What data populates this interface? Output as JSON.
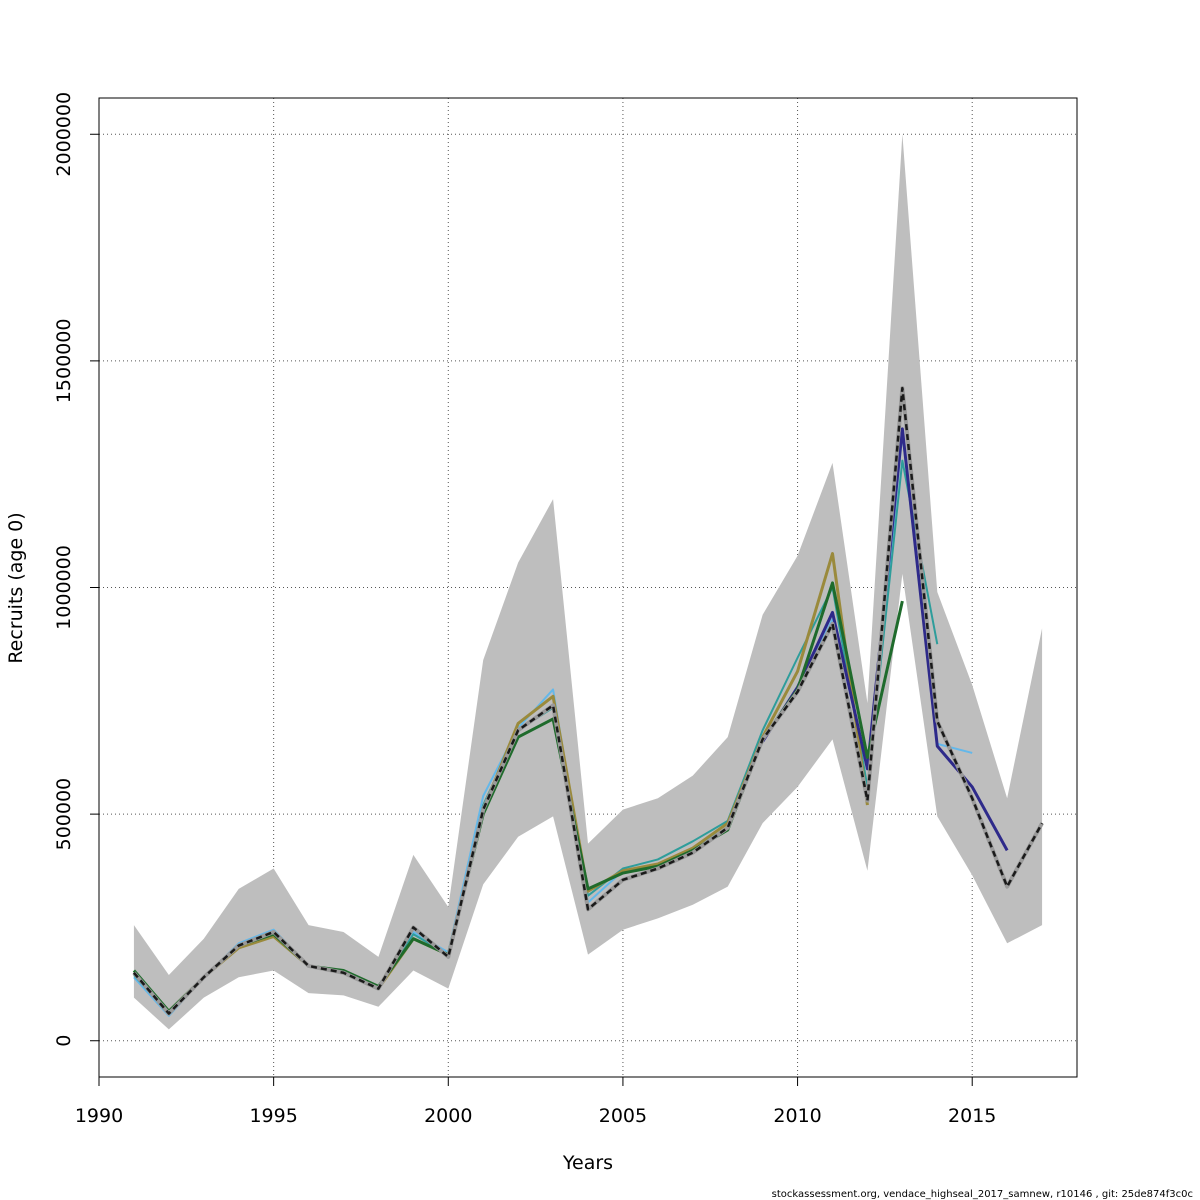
{
  "chart_data": {
    "type": "line",
    "title": "",
    "xlabel": "Years",
    "ylabel": "Recruits (age 0)",
    "xlim": [
      1990,
      2018
    ],
    "ylim": [
      -80000,
      2080000
    ],
    "x_ticks": [
      1990,
      1995,
      2000,
      2005,
      2010,
      2015
    ],
    "y_ticks": [
      0,
      500000,
      1000000,
      1500000,
      2000000
    ],
    "grid": true,
    "legend": "none",
    "footer": "stockassessment.org, vendace_highseal_2017_samnew, r10146 , git: 25de874f3c0c",
    "band": {
      "color": "#bebebe",
      "x": [
        1991,
        1992,
        1993,
        1994,
        1995,
        1996,
        1997,
        1998,
        1999,
        2000,
        2001,
        2002,
        2003,
        2004,
        2005,
        2006,
        2007,
        2008,
        2009,
        2010,
        2011,
        2012,
        2013,
        2014,
        2015,
        2016,
        2017
      ],
      "lower": [
        95000,
        25000,
        95000,
        140000,
        155000,
        105000,
        100000,
        75000,
        155000,
        115000,
        345000,
        450000,
        495000,
        190000,
        245000,
        270000,
        300000,
        340000,
        480000,
        560000,
        665000,
        375000,
        1030000,
        495000,
        365000,
        215000,
        255000
      ],
      "upper": [
        255000,
        145000,
        225000,
        335000,
        380000,
        255000,
        240000,
        185000,
        410000,
        295000,
        840000,
        1055000,
        1195000,
        435000,
        510000,
        535000,
        585000,
        670000,
        940000,
        1070000,
        1275000,
        745000,
        2000000,
        990000,
        785000,
        535000,
        910000
      ]
    },
    "series": [
      {
        "color": "#64b8ea",
        "width": 2,
        "x": [
          1991,
          1992,
          1993,
          1994,
          1995,
          1996,
          1997,
          1998,
          1999,
          2000,
          2001,
          2002,
          2003,
          2004,
          2005,
          2006,
          2007,
          2008,
          2009,
          2010,
          2011,
          2012,
          2013,
          2014,
          2015
        ],
        "values": [
          140000,
          55000,
          140000,
          215000,
          245000,
          165000,
          155000,
          120000,
          240000,
          195000,
          540000,
          690000,
          775000,
          305000,
          375000,
          390000,
          425000,
          470000,
          660000,
          775000,
          930000,
          540000,
          1340000,
          655000,
          635000
        ]
      },
      {
        "color": "#2e9d9b",
        "width": 2,
        "x": [
          1991,
          1992,
          1993,
          1994,
          1995,
          1996,
          1997,
          1998,
          1999,
          2000,
          2001,
          2002,
          2003,
          2004,
          2005,
          2006,
          2007,
          2008,
          2009,
          2010,
          2011,
          2012,
          2013,
          2014
        ],
        "values": [
          145000,
          60000,
          140000,
          210000,
          235000,
          165000,
          150000,
          115000,
          235000,
          190000,
          520000,
          685000,
          735000,
          320000,
          380000,
          400000,
          440000,
          485000,
          685000,
          845000,
          1000000,
          560000,
          1280000,
          875000
        ]
      },
      {
        "color": "#9a8a3c",
        "width": 3,
        "x": [
          1991,
          1992,
          1993,
          1994,
          1995,
          1996,
          1997,
          1998,
          1999,
          2000,
          2001,
          2002,
          2003,
          2004,
          2005,
          2006,
          2007,
          2008,
          2009,
          2010,
          2011,
          2012
        ],
        "values": [
          150000,
          65000,
          140000,
          205000,
          230000,
          165000,
          150000,
          115000,
          225000,
          190000,
          510000,
          700000,
          760000,
          330000,
          375000,
          390000,
          425000,
          480000,
          670000,
          815000,
          1075000,
          520000
        ]
      },
      {
        "color": "#2e2a8a",
        "width": 3,
        "x": [
          2009,
          2010,
          2011,
          2012,
          2013,
          2014,
          2015,
          2016
        ],
        "values": [
          660000,
          780000,
          945000,
          600000,
          1350000,
          650000,
          560000,
          420000
        ]
      },
      {
        "color": "#1f6b2c",
        "width": 3,
        "x": [
          1991,
          1992,
          1993,
          1994,
          1995,
          1996,
          1997,
          1998,
          1999,
          2000,
          2001,
          2002,
          2003,
          2004,
          2005,
          2006,
          2007,
          2008,
          2009,
          2010,
          2011,
          2012,
          2013
        ],
        "values": [
          155000,
          65000,
          140000,
          210000,
          235000,
          165000,
          155000,
          120000,
          225000,
          190000,
          500000,
          670000,
          710000,
          335000,
          370000,
          385000,
          420000,
          465000,
          665000,
          775000,
          1010000,
          625000,
          970000
        ]
      }
    ],
    "reference": {
      "color": "#1a1a1a",
      "width": 2.5,
      "dashed": true,
      "x": [
        1991,
        1992,
        1993,
        1994,
        1995,
        1996,
        1997,
        1998,
        1999,
        2000,
        2001,
        2002,
        2003,
        2004,
        2005,
        2006,
        2007,
        2008,
        2009,
        2010,
        2011,
        2012,
        2013,
        2014,
        2015,
        2016,
        2017
      ],
      "values": [
        150000,
        60000,
        140000,
        210000,
        240000,
        165000,
        150000,
        115000,
        250000,
        185000,
        510000,
        685000,
        740000,
        290000,
        355000,
        380000,
        415000,
        470000,
        665000,
        770000,
        920000,
        530000,
        1440000,
        705000,
        535000,
        340000,
        480000
      ]
    }
  }
}
